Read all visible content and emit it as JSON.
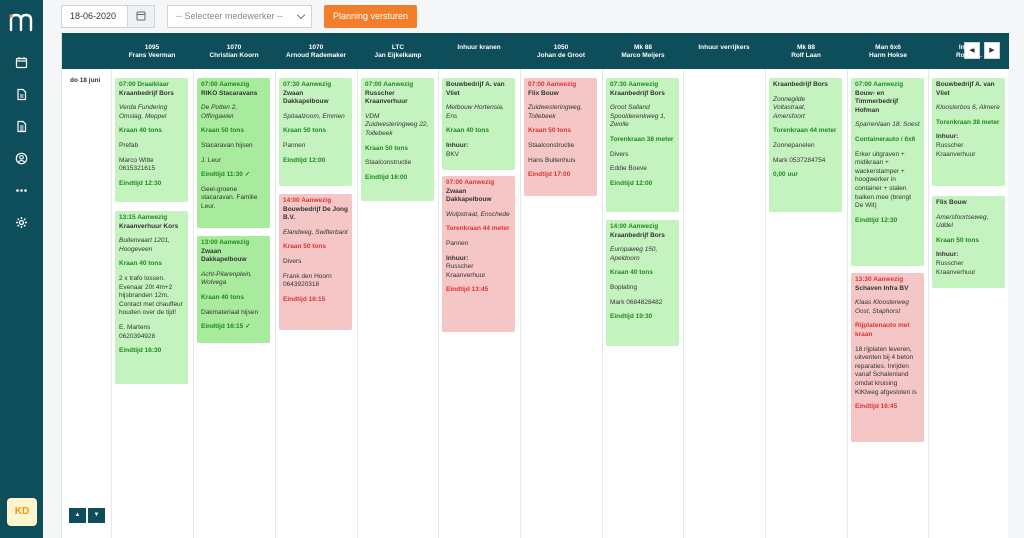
{
  "colors": {
    "primary": "#0e4e5a",
    "accent": "#f27d2a",
    "green_card": "#c5f3bf",
    "red_card": "#f4c6c6",
    "avatar_text": "#e39b10"
  },
  "sidebar": {
    "icons": [
      "calendar-icon",
      "document-icon",
      "document-list-icon",
      "user-circle-icon",
      "more-icon",
      "gear-icon"
    ],
    "avatar": "KD"
  },
  "toolbar": {
    "date_value": "18-06-2020",
    "employee_select": "-- Selecteer medewerker --",
    "send_button": "Planning versturen"
  },
  "planner": {
    "day_label": "do 18 juni",
    "columns": [
      {
        "line1": "1095",
        "line2": "Frans Veerman"
      },
      {
        "line1": "1070",
        "line2": "Christian Koorn"
      },
      {
        "line1": "1070",
        "line2": "Arnoud Rademaker"
      },
      {
        "line1": "LTC",
        "line2": "Jan Eijkelkamp"
      },
      {
        "line1": "Inhuur kranen",
        "line2": ""
      },
      {
        "line1": "1050",
        "line2": "Johan de Groot"
      },
      {
        "line1": "Mk 88",
        "line2": "Marco Meijers"
      },
      {
        "line1": "Inhuur verrijkers",
        "line2": ""
      },
      {
        "line1": "Mk 88",
        "line2": "Rolf Laan"
      },
      {
        "line1": "Man 6x6",
        "line2": "Harm Hokse"
      },
      {
        "line1": "Inhuur",
        "line2": "Roel R..."
      }
    ],
    "cards": [
      {
        "id": "c1",
        "color": "green",
        "lines": [
          {
            "t": "07:00 Draaiklaar",
            "s": "g"
          },
          {
            "t": "Kraanbedrijf Bors",
            "s": "b"
          },
          {
            "t": "Verda Fundering Omslag, Meppel",
            "s": "i gap"
          },
          {
            "t": "Kraan 40 tons",
            "s": "g gap"
          },
          {
            "t": "Prefab",
            "s": "gap"
          },
          {
            "t": "Marco Witte 0615321615",
            "s": "gap"
          },
          {
            "t": "Eindtijd 12:30",
            "s": "g gap"
          }
        ]
      },
      {
        "id": "c2",
        "color": "green",
        "lines": [
          {
            "t": "13:15 Aanwezig",
            "s": "g"
          },
          {
            "t": "Kraanverhuur Kors",
            "s": "b"
          },
          {
            "t": "Buitenvaart 1201, Hoogeveen",
            "s": "i gap"
          },
          {
            "t": "Kraan 40 tons",
            "s": "g gap"
          },
          {
            "t": "2 x trafo lossen. Evenaar 20t 4m+2 hijsbranden 12m. Contact met chauffeur houden over de tijd!",
            "s": "gap"
          },
          {
            "t": "E. Martens 0620394928",
            "s": "gap"
          },
          {
            "t": "Eindtijd 16:30",
            "s": "g gap"
          }
        ]
      },
      {
        "id": "c3",
        "color": "dgreen",
        "lines": [
          {
            "t": "07:00 Aanwezig",
            "s": "g"
          },
          {
            "t": "RIKO Stacaravans",
            "s": "b"
          },
          {
            "t": "De Potten 2, Offingawier",
            "s": "i gap"
          },
          {
            "t": "Kraan 50 tons",
            "s": "g gap"
          },
          {
            "t": "Stacaravan hijsen",
            "s": "gap"
          },
          {
            "t": "J. Leur",
            "s": "gap"
          },
          {
            "t": "Eindtijd 11:30 ✓",
            "s": "g gap"
          },
          {
            "t": "Geel-groene stacaravan. Familie Leur.",
            "s": "gap"
          }
        ]
      },
      {
        "id": "c4",
        "color": "dgreen",
        "lines": [
          {
            "t": "13:00 Aanwezig",
            "s": "g"
          },
          {
            "t": "Zwaan Dakkapelbouw",
            "s": "b"
          },
          {
            "t": "Acht-Pilarenplein, Wolvega",
            "s": "i gap"
          },
          {
            "t": "Kraan 40 tons",
            "s": "g gap"
          },
          {
            "t": "Dakmateriaal hijsen",
            "s": "gap"
          },
          {
            "t": "Eindtijd 16:15 ✓",
            "s": "g gap"
          }
        ]
      },
      {
        "id": "c5",
        "color": "green",
        "lines": [
          {
            "t": "07:30 Aanwezig",
            "s": "g"
          },
          {
            "t": "Zwaan Dakkapelbouw",
            "s": "b"
          },
          {
            "t": "Spitaalzoom, Emmen",
            "s": "i gap"
          },
          {
            "t": "Kraan 50 tons",
            "s": "g gap"
          },
          {
            "t": "Pannen",
            "s": "gap"
          },
          {
            "t": "Eindtijd 12:00",
            "s": "g gap"
          }
        ]
      },
      {
        "id": "c6",
        "color": "red",
        "lines": [
          {
            "t": "14:00 Aanwezig",
            "s": "r"
          },
          {
            "t": "Bouwbedrijf De Jong B.V.",
            "s": "b"
          },
          {
            "t": "Elandweg, Swifterbant",
            "s": "i gap"
          },
          {
            "t": "Kraan 50 tons",
            "s": "r gap"
          },
          {
            "t": "Divers",
            "s": "gap"
          },
          {
            "t": "Frank den Hoorn 0643920318",
            "s": "gap"
          },
          {
            "t": "Eindtijd 16:15",
            "s": "r gap"
          }
        ]
      },
      {
        "id": "c7",
        "color": "green",
        "lines": [
          {
            "t": "07:00 Aanwezig",
            "s": "g"
          },
          {
            "t": "Russcher Kraanverhuur",
            "s": "b"
          },
          {
            "t": "VDM Zuidwesteringweg 22, Tollebeek",
            "s": "i gap"
          },
          {
            "t": "Kraan 50 tons",
            "s": "g gap"
          },
          {
            "t": "Staalconstructie",
            "s": "gap"
          },
          {
            "t": "Eindtijd 16:00",
            "s": "g gap"
          }
        ]
      },
      {
        "id": "c8",
        "color": "green",
        "lines": [
          {
            "t": "Bouwbedrijf A. van Vliet",
            "s": "b"
          },
          {
            "t": "Metbouw Hortensia, Ens",
            "s": "i gap"
          },
          {
            "t": "Kraan 40 tons",
            "s": "g gap"
          },
          {
            "t": "Inhuur:",
            "s": "b gap"
          },
          {
            "t": "BKV",
            "s": ""
          }
        ]
      },
      {
        "id": "c9",
        "color": "red",
        "lines": [
          {
            "t": "07:00 Aanwezig",
            "s": "r"
          },
          {
            "t": "Zwaan Dakkapelbouw",
            "s": "b"
          },
          {
            "t": "Wulpstraat, Enschede",
            "s": "i gap"
          },
          {
            "t": "Torenkraan 44 meter",
            "s": "r gap"
          },
          {
            "t": "Pannen",
            "s": "gap"
          },
          {
            "t": "Inhuur:",
            "s": "b gap"
          },
          {
            "t": "Russcher Kraanverhuur",
            "s": ""
          },
          {
            "t": "Eindtijd 13:45",
            "s": "r gap"
          }
        ]
      },
      {
        "id": "c10",
        "color": "red",
        "lines": [
          {
            "t": "07:00 Aanwezig",
            "s": "r"
          },
          {
            "t": "Flix Bouw",
            "s": "b"
          },
          {
            "t": "Zuidwesteringweg, Tollebeek",
            "s": "i gap"
          },
          {
            "t": "Kraan 50 tons",
            "s": "r gap"
          },
          {
            "t": "Staalconstructie",
            "s": "gap"
          },
          {
            "t": "Hans Buitenhuis",
            "s": "gap"
          },
          {
            "t": "Eindtijd 17:00",
            "s": "r gap"
          }
        ]
      },
      {
        "id": "c11",
        "color": "green",
        "lines": [
          {
            "t": "07:30 Aanwezig",
            "s": "g"
          },
          {
            "t": "Kraanbedrijf Bors",
            "s": "b"
          },
          {
            "t": "Groot Salland Spoolderenkweg 1, Zwolle",
            "s": "i gap"
          },
          {
            "t": "Torenkraan 38 meter",
            "s": "g gap"
          },
          {
            "t": "Divers",
            "s": "gap"
          },
          {
            "t": "Eddie Boeve",
            "s": "gap"
          },
          {
            "t": "Eindtijd 12:00",
            "s": "g gap"
          }
        ]
      },
      {
        "id": "c12",
        "color": "green",
        "lines": [
          {
            "t": "14:00 Aanwezig",
            "s": "g"
          },
          {
            "t": "Kraanbedrijf Bors",
            "s": "b"
          },
          {
            "t": "Europaweg 150, Apeldoorn",
            "s": "i gap"
          },
          {
            "t": "Kraan 40 tons",
            "s": "g gap"
          },
          {
            "t": "Boplating",
            "s": "gap"
          },
          {
            "t": "Mark 0684828482",
            "s": "gap"
          },
          {
            "t": "Eindtijd 19:30",
            "s": "g gap"
          }
        ]
      },
      {
        "id": "c13",
        "color": "green",
        "lines": [
          {
            "t": "Kraanbedrijf Bors",
            "s": "b"
          },
          {
            "t": "Zonnegilde Voltastraat, Amersfoort",
            "s": "i gap"
          },
          {
            "t": "Torenkraan 44 meter",
            "s": "g gap"
          },
          {
            "t": "Zonnepanelen",
            "s": "gap"
          },
          {
            "t": "Mark 0537284754",
            "s": "gap"
          },
          {
            "t": "0,00 uur",
            "s": "g gap"
          }
        ]
      },
      {
        "id": "c14",
        "color": "green",
        "lines": [
          {
            "t": "07:00 Aanwezig",
            "s": "g"
          },
          {
            "t": "Bouw- en Timmerbedrijf Hofman",
            "s": "b"
          },
          {
            "t": "Sparrenlaan 18, Soest",
            "s": "i gap"
          },
          {
            "t": "Containerauto / 6x6",
            "s": "g gap"
          },
          {
            "t": "Erker uitgraven + midikraan + wackerstamper + hoogwerker in container + stalen balken mee (brengt De Wit)",
            "s": "gap"
          },
          {
            "t": "Eindtijd 12:30",
            "s": "g gap"
          }
        ]
      },
      {
        "id": "c15",
        "color": "red",
        "lines": [
          {
            "t": "13:30 Aanwezig",
            "s": "r"
          },
          {
            "t": "Schaven Infra BV",
            "s": "b"
          },
          {
            "t": "Klaas Kloosterweg Oost, Staphorst",
            "s": "i gap"
          },
          {
            "t": "Rijplatenauto met kraan",
            "s": "r gap"
          },
          {
            "t": "18 rijplaten leveren, uitventen bij 4 beton reparaties. Inrijden vanaf Schalenland omdat kruising KlKlweg afgesloten is",
            "s": "gap"
          },
          {
            "t": "Eindtijd 16:45",
            "s": "r gap"
          }
        ]
      },
      {
        "id": "c16",
        "color": "green",
        "lines": [
          {
            "t": "Bouwbedrijf A. van Vliet",
            "s": "b"
          },
          {
            "t": "Kloosterbos 6, Almere",
            "s": "i gap"
          },
          {
            "t": "Torenkraan 38 meter",
            "s": "g gap"
          },
          {
            "t": "Inhuur:",
            "s": "b gap"
          },
          {
            "t": "Russcher Kraanverhuur",
            "s": ""
          }
        ]
      },
      {
        "id": "c17",
        "color": "green",
        "lines": [
          {
            "t": "Flix Bouw",
            "s": "b"
          },
          {
            "t": "Amersfoortseweg, Uddel",
            "s": "i gap"
          },
          {
            "t": "Kraan 50 tons",
            "s": "g gap"
          },
          {
            "t": "Inhuur:",
            "s": "b gap"
          },
          {
            "t": "Russcher Kraanverhuur",
            "s": ""
          }
        ]
      }
    ]
  }
}
